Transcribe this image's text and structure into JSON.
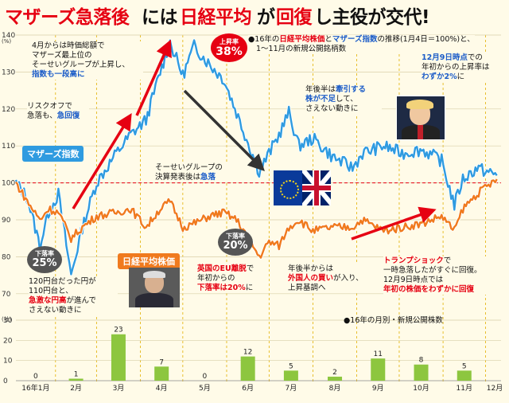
{
  "title": {
    "part1": "マザーズ急落後",
    "part2": "には",
    "part3": "日経平均",
    "part4": "が",
    "part5": "回復",
    "part6": "し主役が交代!"
  },
  "legend": {
    "line1_pre": "●16年の",
    "line1_nikkei": "日経平均株価",
    "line1_mid": "と",
    "line1_mothers": "マザーズ指数",
    "line1_post": "の推移(1月4日＝100%)と、",
    "line2": "1〜11月の新規公開銘柄数",
    "bar_legend": "●16年の月別・新規公開株数"
  },
  "labels": {
    "mothers_tag": "マザーズ指数",
    "nikkei_tag": "日経平均株価",
    "up_title": "上昇率",
    "up_value": "38%",
    "down1_title": "下落率",
    "down1_value": "25%",
    "down2_title": "下落率",
    "down2_value": "20%"
  },
  "notes": {
    "n1": [
      "4月からは時価総額で",
      "マザーズ最上位の",
      "そーせいグループが上昇し、",
      "指数も一段高に"
    ],
    "n2": [
      "リスクオフで",
      "急落も、",
      "急回復"
    ],
    "n3": [
      "年後半は",
      "牽引する",
      "株が不足",
      "して、",
      "さえない動きに"
    ],
    "n4": [
      "12月9日時点",
      "での",
      "年初からの上昇率は",
      "わずか2%",
      "に"
    ],
    "n5": [
      "そーせいグループの",
      "決算発表後は",
      "急落"
    ],
    "n6": [
      "120円台だった円が",
      "110円台と、",
      "急激な円高",
      "が進んで",
      "さえない動きに"
    ],
    "n7": [
      "英国のEU離脱",
      "で",
      "年初からの",
      "下落率は20%",
      "に"
    ],
    "n8": [
      "年後半からは",
      "外国人の買い",
      "が入り、",
      "上昇基調へ"
    ],
    "n9": [
      "トランプショック",
      "で",
      "一時急落したがすぐに回復。",
      "12月9日時点では",
      "年初の株価をわずかに回復"
    ]
  },
  "colors": {
    "mothers": "#2f9be0",
    "nikkei": "#f07a1e",
    "bar": "#8dc63f",
    "red": "#e60012",
    "arrow_dark": "#333333"
  },
  "chart_data": [
    {
      "type": "line",
      "title": "",
      "ylabel": "(%)",
      "ylim": [
        65,
        140
      ],
      "yticks": [
        70,
        80,
        90,
        100,
        110,
        120,
        130,
        140
      ],
      "x_range": [
        "2016-01-04",
        "2016-12-09"
      ],
      "series": [
        {
          "name": "マザーズ指数",
          "points": [
            [
              "2016-01-04",
              100
            ],
            [
              "2016-01-12",
              96
            ],
            [
              "2016-01-21",
              83
            ],
            [
              "2016-01-27",
              92
            ],
            [
              "2016-02-03",
              97
            ],
            [
              "2016-02-12",
              75
            ],
            [
              "2016-02-20",
              88
            ],
            [
              "2016-03-01",
              100
            ],
            [
              "2016-03-15",
              108
            ],
            [
              "2016-03-25",
              113
            ],
            [
              "2016-04-05",
              117
            ],
            [
              "2016-04-15",
              130
            ],
            [
              "2016-04-22",
              138
            ],
            [
              "2016-05-01",
              129
            ],
            [
              "2016-05-09",
              137
            ],
            [
              "2016-05-20",
              132
            ],
            [
              "2016-05-30",
              128
            ],
            [
              "2016-06-08",
              119
            ],
            [
              "2016-06-15",
              112
            ],
            [
              "2016-06-24",
              103
            ],
            [
              "2016-07-01",
              108
            ],
            [
              "2016-07-08",
              113
            ],
            [
              "2016-07-15",
              119
            ],
            [
              "2016-07-22",
              110
            ],
            [
              "2016-08-01",
              112
            ],
            [
              "2016-08-15",
              107
            ],
            [
              "2016-08-29",
              104
            ],
            [
              "2016-09-05",
              108
            ],
            [
              "2016-09-20",
              110
            ],
            [
              "2016-10-03",
              108
            ],
            [
              "2016-10-17",
              109
            ],
            [
              "2016-10-31",
              106
            ],
            [
              "2016-11-09",
              94
            ],
            [
              "2016-11-15",
              101
            ],
            [
              "2016-11-25",
              104
            ],
            [
              "2016-12-09",
              102
            ]
          ]
        },
        {
          "name": "日経平均株価",
          "points": [
            [
              "2016-01-04",
              100
            ],
            [
              "2016-01-12",
              95
            ],
            [
              "2016-01-21",
              90
            ],
            [
              "2016-01-27",
              93
            ],
            [
              "2016-02-03",
              92
            ],
            [
              "2016-02-12",
              85
            ],
            [
              "2016-02-20",
              88
            ],
            [
              "2016-03-01",
              91
            ],
            [
              "2016-03-15",
              92
            ],
            [
              "2016-03-25",
              93
            ],
            [
              "2016-04-05",
              88
            ],
            [
              "2016-04-15",
              93
            ],
            [
              "2016-04-22",
              95
            ],
            [
              "2016-05-01",
              88
            ],
            [
              "2016-05-09",
              89
            ],
            [
              "2016-05-20",
              91
            ],
            [
              "2016-05-30",
              92
            ],
            [
              "2016-06-08",
              90
            ],
            [
              "2016-06-15",
              86
            ],
            [
              "2016-06-24",
              80
            ],
            [
              "2016-07-01",
              84
            ],
            [
              "2016-07-08",
              83
            ],
            [
              "2016-07-15",
              88
            ],
            [
              "2016-07-22",
              90
            ],
            [
              "2016-08-01",
              87
            ],
            [
              "2016-08-15",
              88
            ],
            [
              "2016-08-29",
              88
            ],
            [
              "2016-09-05",
              90
            ],
            [
              "2016-09-20",
              87
            ],
            [
              "2016-10-03",
              88
            ],
            [
              "2016-10-17",
              89
            ],
            [
              "2016-10-31",
              91
            ],
            [
              "2016-11-09",
              87
            ],
            [
              "2016-11-15",
              93
            ],
            [
              "2016-11-25",
              97
            ],
            [
              "2016-12-09",
              101
            ]
          ]
        }
      ]
    },
    {
      "type": "bar",
      "title": "●16年の月別・新規公開株数",
      "ylabel": "(社)",
      "ylim": [
        0,
        30
      ],
      "yticks": [
        0,
        10,
        20,
        30
      ],
      "categories": [
        "16年1月",
        "2月",
        "3月",
        "4月",
        "5月",
        "6月",
        "7月",
        "8月",
        "9月",
        "10月",
        "11月",
        "12月"
      ],
      "values": [
        0,
        1,
        23,
        7,
        0,
        12,
        5,
        2,
        11,
        8,
        5,
        null
      ]
    }
  ]
}
